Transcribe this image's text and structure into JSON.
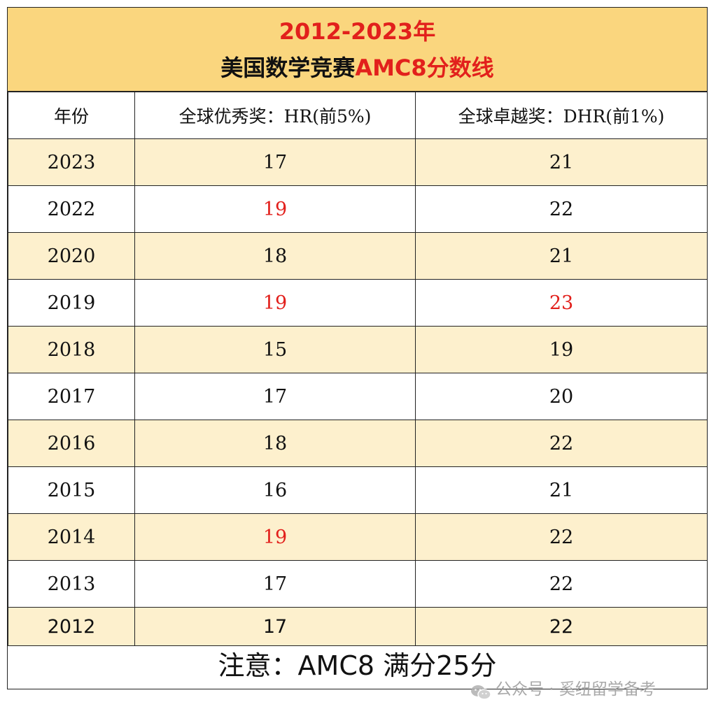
{
  "title": {
    "line1": "2012-2023年",
    "line2_prefix": "美国数学竞赛",
    "line2_accent": "AMC8分数线"
  },
  "table": {
    "headers": [
      "年份",
      "全球优秀奖：HR(前5%)",
      "全球卓越奖：DHR(前1%)"
    ],
    "rows": [
      {
        "year": "2023",
        "hr": "17",
        "dhr": "21",
        "hr_highlight": false,
        "dhr_highlight": false
      },
      {
        "year": "2022",
        "hr": "19",
        "dhr": "22",
        "hr_highlight": true,
        "dhr_highlight": false
      },
      {
        "year": "2020",
        "hr": "18",
        "dhr": "21",
        "hr_highlight": false,
        "dhr_highlight": false
      },
      {
        "year": "2019",
        "hr": "19",
        "dhr": "23",
        "hr_highlight": true,
        "dhr_highlight": true
      },
      {
        "year": "2018",
        "hr": "15",
        "dhr": "19",
        "hr_highlight": false,
        "dhr_highlight": false
      },
      {
        "year": "2017",
        "hr": "17",
        "dhr": "20",
        "hr_highlight": false,
        "dhr_highlight": false
      },
      {
        "year": "2016",
        "hr": "18",
        "dhr": "22",
        "hr_highlight": false,
        "dhr_highlight": false
      },
      {
        "year": "2015",
        "hr": "16",
        "dhr": "21",
        "hr_highlight": false,
        "dhr_highlight": false
      },
      {
        "year": "2014",
        "hr": "19",
        "dhr": "22",
        "hr_highlight": true,
        "dhr_highlight": false
      },
      {
        "year": "2013",
        "hr": "17",
        "dhr": "22",
        "hr_highlight": false,
        "dhr_highlight": false
      },
      {
        "year": "2012",
        "hr": "17",
        "dhr": "22",
        "hr_highlight": false,
        "dhr_highlight": false
      }
    ]
  },
  "note": "注意：AMC8 满分25分",
  "watermark": {
    "icon": "wechat-icon",
    "text": "公众号 · 奚纽留学备考"
  },
  "colors": {
    "title_band": "#fad67e",
    "row_shade": "#fdf0cd",
    "highlight": "#e2201c",
    "border": "#222222"
  }
}
